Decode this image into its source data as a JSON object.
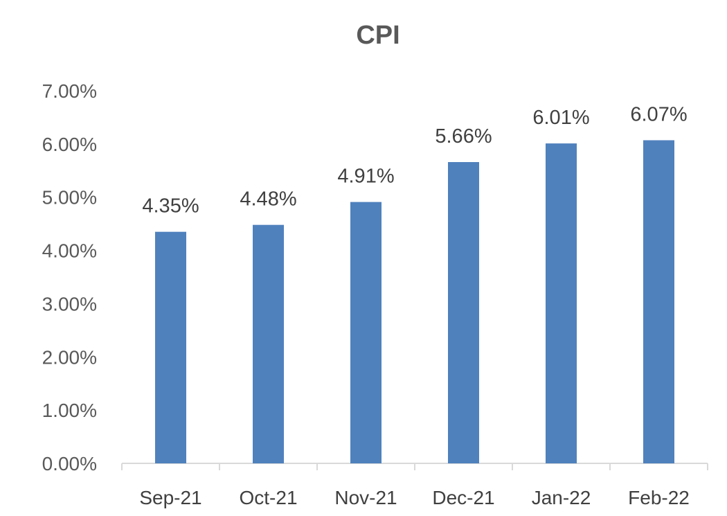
{
  "chart_data": {
    "type": "bar",
    "title": "CPI",
    "xlabel": "",
    "ylabel": "",
    "categories": [
      "Sep-21",
      "Oct-21",
      "Nov-21",
      "Dec-21",
      "Jan-22",
      "Feb-22"
    ],
    "values": [
      4.35,
      4.48,
      4.91,
      5.66,
      6.01,
      6.07
    ],
    "data_labels": [
      "4.35%",
      "4.48%",
      "4.91%",
      "5.66%",
      "6.01%",
      "6.07%"
    ],
    "ylim": [
      0,
      7
    ],
    "yticks": [
      0,
      1,
      2,
      3,
      4,
      5,
      6,
      7
    ],
    "ytick_labels": [
      "0.00%",
      "1.00%",
      "2.00%",
      "3.00%",
      "4.00%",
      "5.00%",
      "6.00%",
      "7.00%"
    ],
    "grid": false,
    "legend": "none",
    "colors": {
      "bar": "#4f81bd",
      "axis": "#d9d9d9"
    }
  }
}
